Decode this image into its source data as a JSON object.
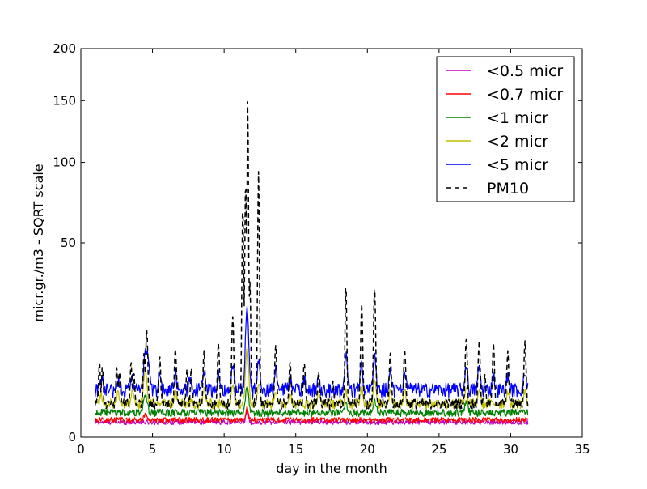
{
  "chart_data": {
    "type": "line",
    "title": "",
    "xlabel": "day in the month",
    "ylabel": "micr.gr./m3 - SQRT scale",
    "xlim": [
      0,
      35
    ],
    "ylim": [
      0,
      200
    ],
    "y_scale": "sqrt",
    "grid": false,
    "legend_position": "top-right",
    "xticks": [
      0,
      5,
      10,
      15,
      20,
      25,
      30,
      35
    ],
    "yticks": [
      0,
      50,
      100,
      150,
      200
    ],
    "xtick_labels": [
      "0",
      "5",
      "10",
      "15",
      "20",
      "25",
      "30",
      "35"
    ],
    "ytick_labels": [
      "0",
      "50",
      "100",
      "150",
      "200"
    ],
    "series": [
      {
        "name": "<0.5 micr",
        "color": "#bf00bf",
        "style": "solid",
        "base": 0.3,
        "peaks": [
          [
            11.6,
            0.6,
            0.08
          ]
        ]
      },
      {
        "name": "<0.7 micr",
        "color": "#ff0000",
        "style": "solid",
        "base": 0.4,
        "peaks": [
          [
            11.6,
            0.8,
            0.08
          ],
          [
            4.5,
            0.3,
            0.1
          ]
        ]
      },
      {
        "name": "<1 micr",
        "color": "#008000",
        "style": "solid",
        "base": 0.8,
        "peaks": [
          [
            4.5,
            1.5,
            0.12
          ],
          [
            11.6,
            2.5,
            0.1
          ],
          [
            18.5,
            0.8,
            0.08
          ],
          [
            20.5,
            1.0,
            0.1
          ],
          [
            26.9,
            0.8,
            0.1
          ]
        ]
      },
      {
        "name": "<2 micr",
        "color": "#bfbf00",
        "style": "solid",
        "base": 1.5,
        "peaks": [
          [
            1.4,
            1.0,
            0.08
          ],
          [
            2.6,
            1.2,
            0.08
          ],
          [
            3.6,
            1.5,
            0.08
          ],
          [
            4.5,
            4.5,
            0.1
          ],
          [
            6.6,
            1.2,
            0.08
          ],
          [
            8.6,
            1.5,
            0.08
          ],
          [
            10.6,
            2.0,
            0.08
          ],
          [
            11.6,
            9.0,
            0.1
          ],
          [
            12.4,
            2.5,
            0.08
          ],
          [
            13.6,
            1.5,
            0.08
          ],
          [
            14.6,
            1.2,
            0.08
          ],
          [
            16.6,
            1.0,
            0.08
          ],
          [
            18.5,
            1.5,
            0.08
          ],
          [
            19.6,
            2.0,
            0.08
          ],
          [
            20.5,
            3.0,
            0.08
          ],
          [
            21.6,
            1.5,
            0.08
          ],
          [
            22.6,
            1.5,
            0.08
          ],
          [
            26.9,
            1.5,
            0.08
          ],
          [
            27.8,
            1.5,
            0.08
          ],
          [
            29.8,
            1.2,
            0.08
          ],
          [
            31.0,
            1.2,
            0.08
          ]
        ]
      },
      {
        "name": "<5 micr",
        "color": "#0000ff",
        "style": "solid",
        "base": 3.0,
        "peaks": [
          [
            1.3,
            0.8,
            0.06
          ],
          [
            1.5,
            1.5,
            0.06
          ],
          [
            2.6,
            1.5,
            0.08
          ],
          [
            3.6,
            2.0,
            0.08
          ],
          [
            4.5,
            7.0,
            0.1
          ],
          [
            4.7,
            5.0,
            0.08
          ],
          [
            5.5,
            2.0,
            0.08
          ],
          [
            6.6,
            2.5,
            0.08
          ],
          [
            7.6,
            1.5,
            0.08
          ],
          [
            8.6,
            3.0,
            0.08
          ],
          [
            9.6,
            2.5,
            0.08
          ],
          [
            10.6,
            4.0,
            0.08
          ],
          [
            11.6,
            19.0,
            0.1
          ],
          [
            12.4,
            5.0,
            0.08
          ],
          [
            13.6,
            3.0,
            0.08
          ],
          [
            14.6,
            2.0,
            0.08
          ],
          [
            15.6,
            1.5,
            0.08
          ],
          [
            16.6,
            1.5,
            0.08
          ],
          [
            18.5,
            6.0,
            0.08
          ],
          [
            19.6,
            4.0,
            0.08
          ],
          [
            20.5,
            6.0,
            0.08
          ],
          [
            21.6,
            3.0,
            0.08
          ],
          [
            22.6,
            2.5,
            0.08
          ],
          [
            26.9,
            4.0,
            0.08
          ],
          [
            27.8,
            3.5,
            0.08
          ],
          [
            28.8,
            2.0,
            0.08
          ],
          [
            29.8,
            2.0,
            0.08
          ],
          [
            31.0,
            2.5,
            0.08
          ]
        ]
      },
      {
        "name": "PM10",
        "color": "#000000",
        "style": "dashed",
        "base": 1.5,
        "peaks": [
          [
            1.3,
            6.0,
            0.05
          ],
          [
            1.5,
            5.0,
            0.05
          ],
          [
            2.5,
            5.0,
            0.05
          ],
          [
            2.7,
            4.0,
            0.05
          ],
          [
            3.5,
            6.0,
            0.05
          ],
          [
            3.7,
            4.0,
            0.05
          ],
          [
            4.4,
            8.0,
            0.05
          ],
          [
            4.6,
            14.0,
            0.06
          ],
          [
            5.5,
            7.0,
            0.06
          ],
          [
            6.6,
            9.0,
            0.06
          ],
          [
            7.4,
            5.0,
            0.05
          ],
          [
            7.7,
            5.0,
            0.05
          ],
          [
            8.6,
            8.0,
            0.06
          ],
          [
            9.6,
            10.0,
            0.06
          ],
          [
            10.6,
            18.0,
            0.06
          ],
          [
            11.3,
            70.0,
            0.05
          ],
          [
            11.5,
            85.0,
            0.05
          ],
          [
            11.65,
            150.0,
            0.04
          ],
          [
            11.8,
            30.0,
            0.05
          ],
          [
            12.4,
            92.0,
            0.05
          ],
          [
            13.6,
            10.0,
            0.06
          ],
          [
            14.6,
            6.0,
            0.06
          ],
          [
            15.6,
            6.0,
            0.06
          ],
          [
            16.6,
            4.0,
            0.06
          ],
          [
            17.6,
            2.5,
            0.05
          ],
          [
            18.5,
            30.0,
            0.05
          ],
          [
            19.6,
            22.0,
            0.06
          ],
          [
            20.5,
            29.0,
            0.06
          ],
          [
            21.6,
            8.0,
            0.06
          ],
          [
            22.6,
            9.0,
            0.06
          ],
          [
            26.9,
            12.0,
            0.06
          ],
          [
            27.8,
            11.0,
            0.06
          ],
          [
            28.2,
            4.0,
            0.05
          ],
          [
            28.8,
            10.0,
            0.06
          ],
          [
            29.8,
            8.0,
            0.06
          ],
          [
            31.0,
            11.0,
            0.06
          ]
        ]
      }
    ],
    "x_start": 1.0,
    "x_end": 31.2,
    "x_step": 0.04
  }
}
